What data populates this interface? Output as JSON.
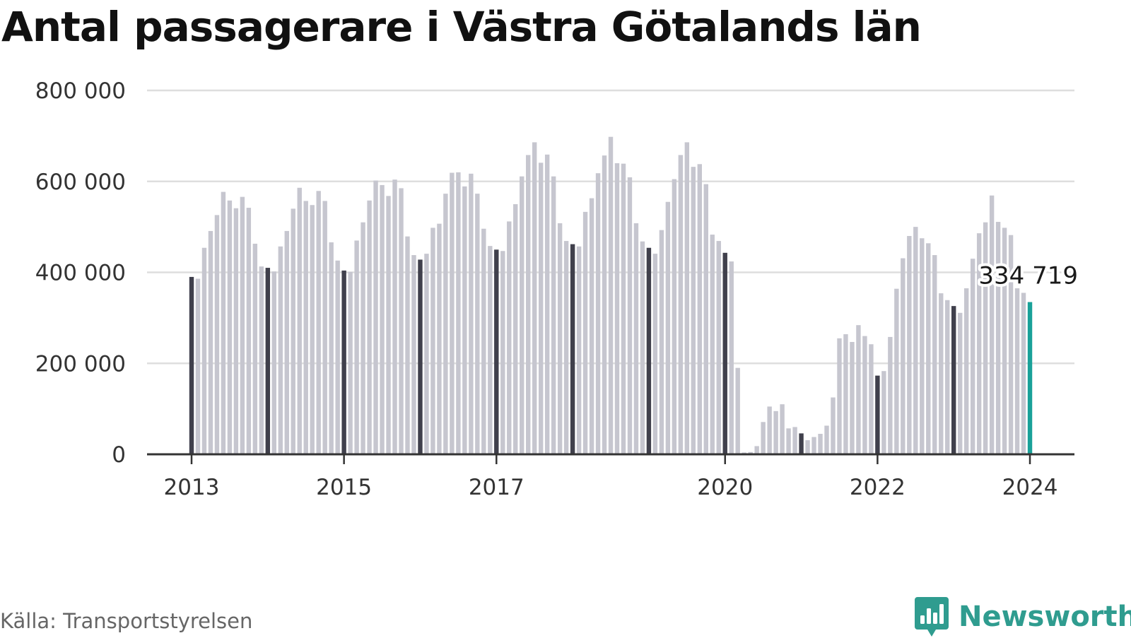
{
  "chart_data": {
    "type": "bar",
    "title": "Antal passagerare i Västra Götalands län",
    "source": "Källa: Transportstyrelsen",
    "brand": "Newsworthy",
    "ylim": [
      0,
      800000
    ],
    "yticks": [
      0,
      200000,
      400000,
      600000,
      800000
    ],
    "ytick_labels": [
      "0",
      "200 000",
      "400 000",
      "600 000",
      "800 000"
    ],
    "xticks": [
      {
        "label": "2013",
        "index": 0
      },
      {
        "label": "2015",
        "index": 24
      },
      {
        "label": "2017",
        "index": 48
      },
      {
        "label": "2020",
        "index": 84
      },
      {
        "label": "2022",
        "index": 108
      },
      {
        "label": "2024",
        "index": 132
      }
    ],
    "grid": true,
    "last_value_label": "334 719",
    "colors": {
      "default": "#c6c6cf",
      "january": "#40404c",
      "latest": "#1aa199",
      "grid": "#dedede",
      "axis": "#333333"
    },
    "series": [
      {
        "period": "2013",
        "values": [
          390000,
          386000,
          454000,
          491000,
          526000,
          577000,
          558000,
          541000,
          566000,
          542000,
          463000,
          413000
        ]
      },
      {
        "period": "2014",
        "values": [
          410000,
          402000,
          457000,
          491000,
          540000,
          586000,
          557000,
          548000,
          579000,
          557000,
          466000,
          426000
        ]
      },
      {
        "period": "2015",
        "values": [
          404000,
          401000,
          470000,
          510000,
          558000,
          602000,
          592000,
          568000,
          604000,
          585000,
          479000,
          438000
        ]
      },
      {
        "period": "2016",
        "values": [
          428000,
          441000,
          498000,
          507000,
          573000,
          619000,
          620000,
          589000,
          617000,
          573000,
          496000,
          458000
        ]
      },
      {
        "period": "2017",
        "values": [
          450000,
          447000,
          512000,
          550000,
          611000,
          658000,
          686000,
          641000,
          659000,
          611000,
          508000,
          469000
        ]
      },
      {
        "period": "2018",
        "values": [
          462000,
          457000,
          533000,
          563000,
          618000,
          657000,
          698000,
          640000,
          639000,
          609000,
          508000,
          468000
        ]
      },
      {
        "period": "2019",
        "values": [
          454000,
          441000,
          493000,
          555000,
          605000,
          658000,
          686000,
          632000,
          638000,
          594000,
          483000,
          469000
        ]
      },
      {
        "period": "2020",
        "values": [
          443000,
          424000,
          190000,
          4000,
          5000,
          18000,
          71000,
          105000,
          95000,
          110000,
          57000,
          60000
        ]
      },
      {
        "period": "2021",
        "values": [
          46000,
          31000,
          38000,
          45000,
          63000,
          125000,
          255000,
          264000,
          247000,
          284000,
          260000,
          242000
        ]
      },
      {
        "period": "2022",
        "values": [
          173000,
          183000,
          258000,
          364000,
          431000,
          480000,
          500000,
          475000,
          464000,
          438000,
          354000,
          339000
        ]
      },
      {
        "period": "2023",
        "values": [
          326000,
          311000,
          365000,
          430000,
          486000,
          510000,
          569000,
          511000,
          498000,
          482000,
          365000,
          355000
        ]
      },
      {
        "period": "2024",
        "values": [
          334719
        ]
      }
    ]
  }
}
